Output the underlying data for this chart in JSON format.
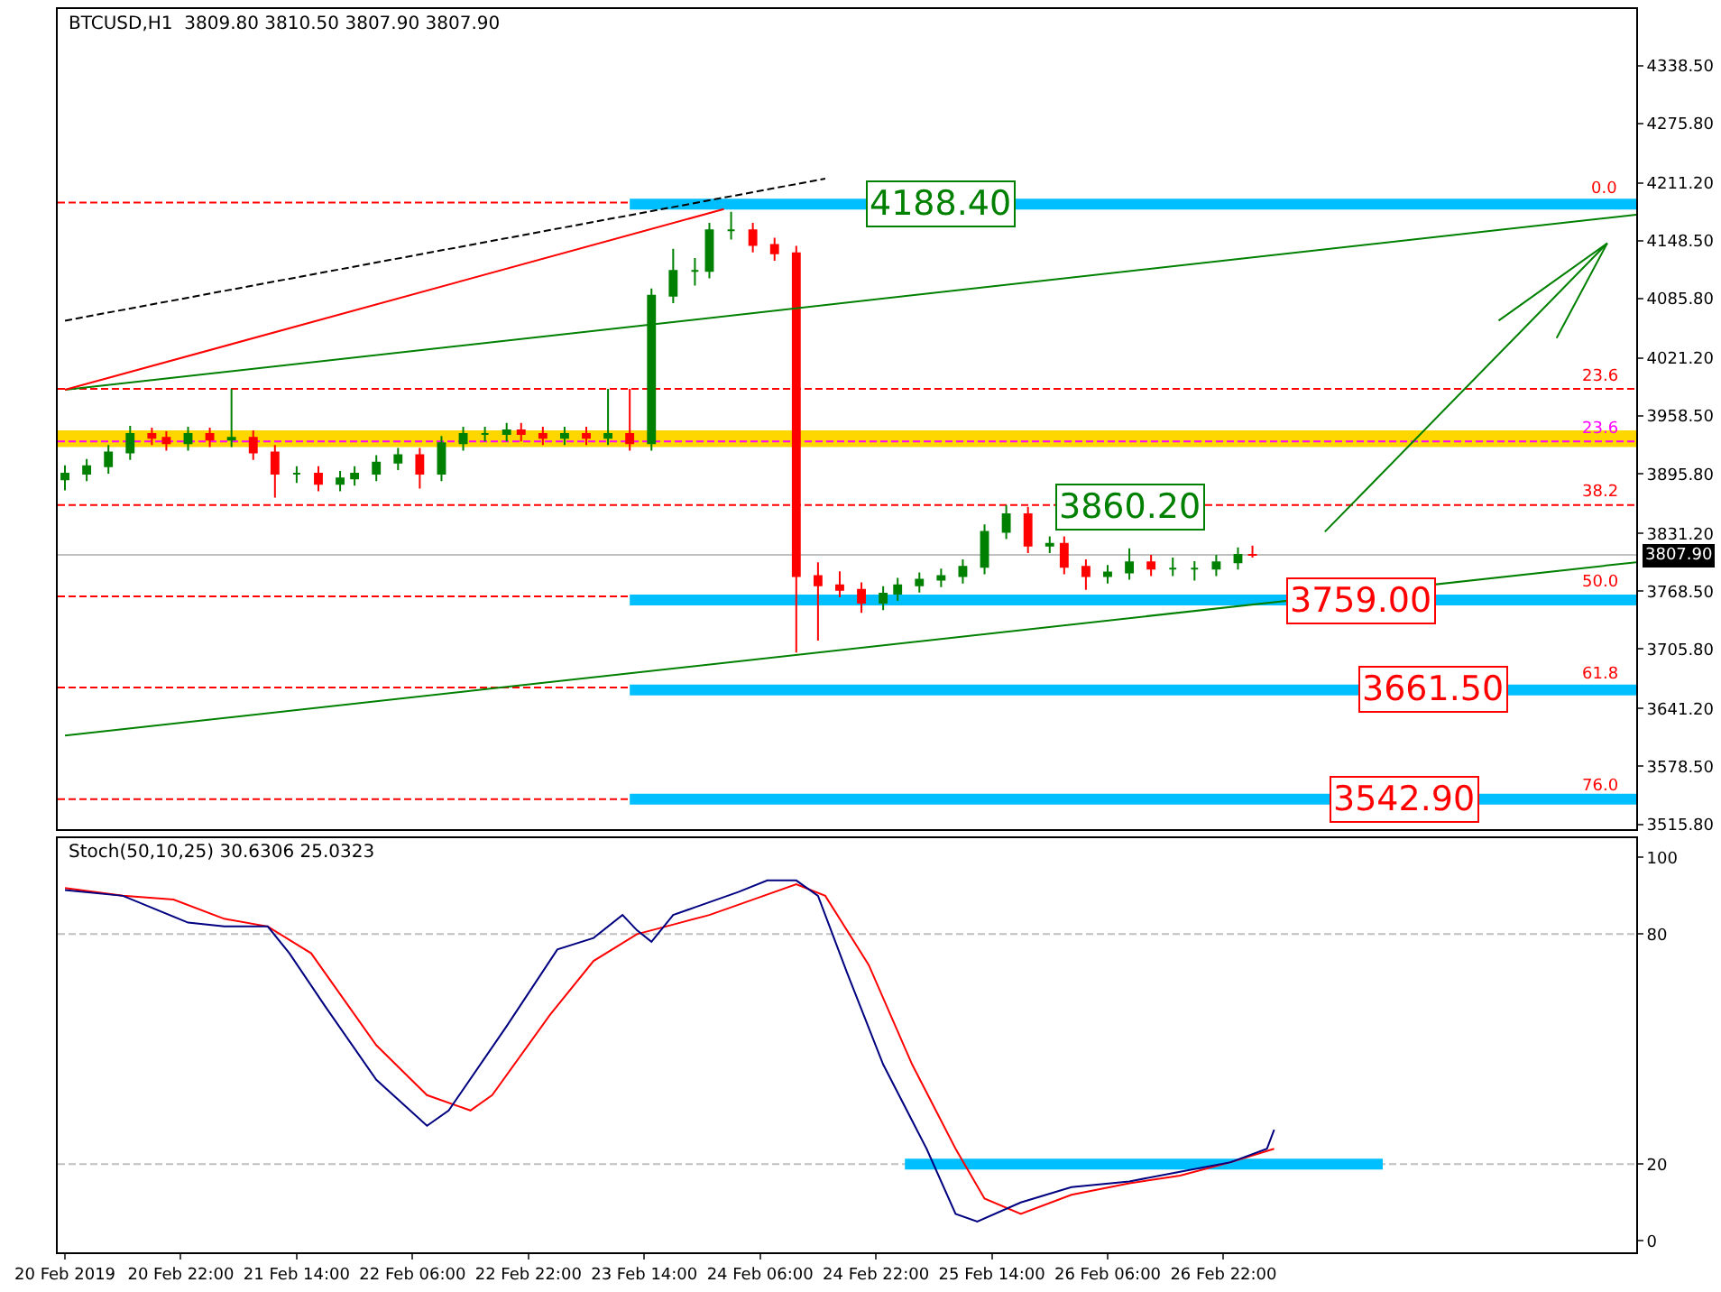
{
  "chart_data": [
    {
      "type": "candlestick",
      "title": "BTCUSD,H1  3809.80 3810.50 3807.90 3807.90",
      "x": [
        "2019-02-20T06:00",
        "2019-02-20T09:00",
        "2019-02-20T12:00",
        "2019-02-20T15:00",
        "2019-02-20T18:00",
        "2019-02-20T20:00",
        "2019-02-20T23:00",
        "2019-02-21T02:00",
        "2019-02-21T05:00",
        "2019-02-21T08:00",
        "2019-02-21T11:00",
        "2019-02-21T14:00",
        "2019-02-21T17:00",
        "2019-02-21T20:00",
        "2019-02-21T22:00",
        "2019-02-22T01:00",
        "2019-02-22T04:00",
        "2019-02-22T07:00",
        "2019-02-22T10:00",
        "2019-02-22T13:00",
        "2019-02-22T16:00",
        "2019-02-22T19:00",
        "2019-02-22T21:00",
        "2019-02-23T00:00",
        "2019-02-23T03:00",
        "2019-02-23T06:00",
        "2019-02-23T09:00",
        "2019-02-23T12:00",
        "2019-02-23T15:00",
        "2019-02-23T18:00",
        "2019-02-23T21:00",
        "2019-02-23T23:00",
        "2019-02-24T02:00",
        "2019-02-24T05:00",
        "2019-02-24T08:00",
        "2019-02-24T11:00",
        "2019-02-24T14:00",
        "2019-02-24T17:00",
        "2019-02-24T20:00",
        "2019-02-24T23:00",
        "2019-02-25T01:00",
        "2019-02-25T04:00",
        "2019-02-25T07:00",
        "2019-02-25T10:00",
        "2019-02-25T13:00",
        "2019-02-25T16:00",
        "2019-02-25T19:00",
        "2019-02-25T22:00",
        "2019-02-26T00:00",
        "2019-02-26T03:00",
        "2019-02-26T06:00",
        "2019-02-26T09:00",
        "2019-02-26T12:00",
        "2019-02-26T15:00",
        "2019-02-26T18:00",
        "2019-02-26T21:00",
        "2019-02-27T00:00",
        "2019-02-27T02:00"
      ],
      "ohlc": [
        [
          3890,
          3905,
          3878,
          3896
        ],
        [
          3896,
          3912,
          3888,
          3904
        ],
        [
          3904,
          3927,
          3896,
          3919
        ],
        [
          3919,
          3948,
          3911,
          3939
        ],
        [
          3939,
          3946,
          3927,
          3935
        ],
        [
          3935,
          3942,
          3921,
          3929
        ],
        [
          3929,
          3947,
          3921,
          3939
        ],
        [
          3939,
          3946,
          3925,
          3933
        ],
        [
          3933,
          3988,
          3925,
          3935
        ],
        [
          3935,
          3943,
          3911,
          3919
        ],
        [
          3919,
          3927,
          3870,
          3896
        ],
        [
          3896,
          3904,
          3886,
          3896
        ],
        [
          3896,
          3904,
          3877,
          3885
        ],
        [
          3885,
          3899,
          3877,
          3891
        ],
        [
          3891,
          3904,
          3883,
          3896
        ],
        [
          3896,
          3916,
          3888,
          3908
        ],
        [
          3908,
          3924,
          3900,
          3916
        ],
        [
          3916,
          3924,
          3880,
          3896
        ],
        [
          3896,
          3937,
          3888,
          3929
        ],
        [
          3929,
          3947,
          3921,
          3939
        ],
        [
          3939,
          3947,
          3931,
          3939
        ],
        [
          3939,
          3951,
          3931,
          3943
        ],
        [
          3943,
          3951,
          3931,
          3939
        ],
        [
          3939,
          3947,
          3927,
          3935
        ],
        [
          3935,
          3947,
          3927,
          3939
        ],
        [
          3939,
          3947,
          3927,
          3935
        ],
        [
          3935,
          3988,
          3927,
          3939
        ],
        [
          3939,
          3988,
          3921,
          3929
        ],
        [
          3929,
          4097,
          3921,
          4089
        ],
        [
          4089,
          4140,
          4081,
          4116
        ],
        [
          4116,
          4130,
          4100,
          4116
        ],
        [
          4116,
          4168,
          4108,
          4160
        ],
        [
          4160,
          4180,
          4150,
          4160
        ],
        [
          4160,
          4168,
          4136,
          4144
        ],
        [
          4144,
          4152,
          4127,
          4135
        ],
        [
          4135,
          4143,
          3702,
          3785
        ],
        [
          3785,
          3800,
          3715,
          3775
        ],
        [
          3775,
          3790,
          3762,
          3770
        ],
        [
          3770,
          3778,
          3745,
          3756
        ],
        [
          3756,
          3774,
          3748,
          3766
        ],
        [
          3766,
          3783,
          3758,
          3775
        ],
        [
          3775,
          3789,
          3767,
          3781
        ],
        [
          3781,
          3793,
          3773,
          3785
        ],
        [
          3785,
          3803,
          3777,
          3795
        ],
        [
          3795,
          3841,
          3787,
          3833
        ],
        [
          3833,
          3862,
          3825,
          3852
        ],
        [
          3852,
          3860,
          3810,
          3818
        ],
        [
          3818,
          3828,
          3810,
          3820
        ],
        [
          3820,
          3828,
          3787,
          3795
        ],
        [
          3795,
          3803,
          3770,
          3785
        ],
        [
          3785,
          3797,
          3777,
          3789
        ],
        [
          3789,
          3815,
          3781,
          3800
        ],
        [
          3800,
          3808,
          3785,
          3793
        ],
        [
          3793,
          3805,
          3785,
          3793
        ],
        [
          3793,
          3801,
          3780,
          3793
        ],
        [
          3793,
          3808,
          3785,
          3800
        ],
        [
          3800,
          3816,
          3792,
          3808
        ],
        [
          3808,
          3818,
          3805,
          3807.9
        ]
      ],
      "colors": [
        "#008000",
        "#008000",
        "#008000",
        "#008000",
        "#ff0000",
        "#ff0000",
        "#008000",
        "#ff0000",
        "#008000",
        "#ff0000",
        "#ff0000",
        "#008000",
        "#ff0000",
        "#008000",
        "#008000",
        "#008000",
        "#008000",
        "#ff0000",
        "#008000",
        "#008000",
        "#008000",
        "#008000",
        "#ff0000",
        "#ff0000",
        "#008000",
        "#ff0000",
        "#008000",
        "#ff0000",
        "#008000",
        "#008000",
        "#008000",
        "#008000",
        "#008000",
        "#ff0000",
        "#ff0000",
        "#ff0000",
        "#ff0000",
        "#ff0000",
        "#ff0000",
        "#008000",
        "#008000",
        "#008000",
        "#008000",
        "#008000",
        "#008000",
        "#008000",
        "#ff0000",
        "#008000",
        "#ff0000",
        "#ff0000",
        "#008000",
        "#008000",
        "#ff0000",
        "#008000",
        "#008000",
        "#008000",
        "#008000",
        "#ff0000"
      ],
      "series": [
        {
          "type": "line",
          "color": "#00bfff",
          "x": [
            "2019-02-23T12:00",
            "2019-03-01T07:00"
          ],
          "values": [
            4188.4,
            4188.4
          ]
        },
        {
          "type": "line",
          "color": "#00bfff",
          "x": [
            "2019-02-23T12:00",
            "2019-03-01T07:00"
          ],
          "values": [
            3759,
            3759
          ]
        },
        {
          "type": "line",
          "color": "#00bfff",
          "x": [
            "2019-02-23T12:00",
            "2019-03-01T07:00"
          ],
          "values": [
            3661.5,
            3661.5
          ]
        },
        {
          "type": "line",
          "color": "#00bfff",
          "x": [
            "2019-02-23T12:00",
            "2019-03-01T07:00"
          ],
          "values": [
            3542.9,
            3542.9
          ]
        },
        {
          "type": "line",
          "color": "#008000",
          "x": [
            "2019-02-20T06:00",
            "2019-03-01T07:00"
          ],
          "values": [
            3612,
            3800
          ]
        },
        {
          "type": "line",
          "color": "#008000",
          "x": [
            "2019-02-20T06:00",
            "2019-03-01T07:00"
          ],
          "values": [
            3987,
            4177
          ]
        },
        {
          "type": "line",
          "color": "#ff0000",
          "x": [
            "2019-02-20T06:00",
            "2019-02-24T01:00"
          ],
          "values": [
            3987,
            4183
          ]
        },
        {
          "type": "line",
          "color": "#000000",
          "line_style": "dashed",
          "x": [
            "2019-02-20T06:00",
            "2019-02-24T15:00"
          ],
          "values": [
            4062,
            4216
          ]
        },
        {
          "type": "line",
          "color": "#008000",
          "x": [
            "2019-02-27T12:00",
            "2019-03-01T03:00",
            "2019-02-28T12:00",
            null,
            "2019-03-01T03:00",
            "2019-02-28T20:00"
          ],
          "values": [
            3833,
            4146,
            4062,
            null,
            4146,
            4043
          ]
        }
      ],
      "ref_lines": [
        {
          "axis": "y",
          "value": 4190,
          "color": "#ff0000",
          "line_style": "dashed"
        },
        {
          "axis": "y",
          "value": 3988,
          "color": "#ff0000",
          "line_style": "dashed"
        },
        {
          "axis": "y",
          "value": 3931,
          "color": "#ff00ff",
          "line_style": "dashed"
        },
        {
          "axis": "y",
          "value": 3862,
          "color": "#ff0000",
          "line_style": "dashed"
        },
        {
          "axis": "y",
          "value": 3763,
          "color": "#ff0000",
          "line_style": "dashed"
        },
        {
          "axis": "y",
          "value": 3664,
          "color": "#ff0000",
          "line_style": "dashed"
        },
        {
          "axis": "y",
          "value": 3543,
          "color": "#ff0000",
          "line_style": "dashed"
        },
        {
          "axis": "y",
          "value": 3807.9,
          "label": "3807.90",
          "color": "#c0c0c0",
          "line_style": "solid"
        }
      ],
      "bands": [
        {
          "axis": "y",
          "from": 3925,
          "to": 3943,
          "color": "#ffd700"
        }
      ],
      "annotations": [
        {
          "text": "4188.40",
          "x": "2019-02-25T07:00",
          "y": 4188.4
        },
        {
          "text": "3860.20",
          "x": "2019-02-26T09:00",
          "y": 3860.2
        },
        {
          "text": "3759.00",
          "x": "2019-02-27T17:00",
          "y": 3759
        },
        {
          "text": "3661.50",
          "x": "2019-02-28T03:00",
          "y": 3661.5
        },
        {
          "text": "3542.90",
          "x": "2019-02-27T23:00",
          "y": 3542.9
        },
        {
          "text": "0.0",
          "x": "2019-03-01T05:00",
          "y": 4190
        },
        {
          "text": "23.6",
          "x": "2019-03-01T05:00",
          "y": 3988
        },
        {
          "text": "23.6",
          "x": "2019-03-01T05:00",
          "y": 3931
        },
        {
          "text": "38.2",
          "x": "2019-03-01T05:00",
          "y": 3862
        },
        {
          "text": "50.0",
          "x": "2019-03-01T05:00",
          "y": 3763
        },
        {
          "text": "61.8",
          "x": "2019-03-01T05:00",
          "y": 3664
        },
        {
          "text": "76.0",
          "x": "2019-03-01T05:00",
          "y": 3543
        }
      ],
      "xlim": [
        "2019-02-20T05:00",
        "2019-03-01T07:00"
      ],
      "ylim": [
        3510,
        4400
      ],
      "yticks": [
        {
          "value": 4338.5,
          "label": "4338.50"
        },
        {
          "value": 4275.8,
          "label": "4275.80"
        },
        {
          "value": 4211.2,
          "label": "4211.20"
        },
        {
          "value": 4148.5,
          "label": "4148.50"
        },
        {
          "value": 4085.8,
          "label": "4085.80"
        },
        {
          "value": 4021.2,
          "label": "4021.20"
        },
        {
          "value": 3958.5,
          "label": "3958.50"
        },
        {
          "value": 3895.8,
          "label": "3895.80"
        },
        {
          "value": 3831.2,
          "label": "3831.20"
        },
        {
          "value": 3768.5,
          "label": "3768.50"
        },
        {
          "value": 3705.8,
          "label": "3705.80"
        },
        {
          "value": 3641.2,
          "label": "3641.20"
        },
        {
          "value": 3578.5,
          "label": "3578.50"
        },
        {
          "value": 3515.8,
          "label": "3515.80"
        }
      ],
      "tick_labels": "y"
    },
    {
      "type": "line",
      "title": "Stoch(50,10,25) 30.6306 25.0323",
      "series": [
        {
          "type": "line",
          "color": "#00bfff",
          "x": [
            "2019-02-25T02:00",
            "2019-02-27T20:00"
          ],
          "values": [
            20,
            20
          ]
        },
        {
          "type": "line",
          "color": "#ff0000",
          "x": [
            "2019-02-20T06:00",
            "2019-02-20T14:00",
            "2019-02-20T21:00",
            "2019-02-21T04:00",
            "2019-02-21T10:00",
            "2019-02-21T16:00",
            "2019-02-22T01:00",
            "2019-02-22T08:00",
            "2019-02-22T14:00",
            "2019-02-22T17:00",
            "2019-02-23T01:00",
            "2019-02-23T07:00",
            "2019-02-23T13:00",
            "2019-02-23T19:00",
            "2019-02-23T23:00",
            "2019-02-24T05:00",
            "2019-02-24T11:00",
            "2019-02-24T15:00",
            "2019-02-24T21:00",
            "2019-02-25T03:00",
            "2019-02-25T09:00",
            "2019-02-25T13:00",
            "2019-02-25T18:00",
            "2019-02-26T01:00",
            "2019-02-26T09:00",
            "2019-02-26T16:00",
            "2019-02-26T23:00",
            "2019-02-27T05:00"
          ],
          "values": [
            92,
            90,
            89,
            84,
            82,
            75,
            51,
            38,
            34,
            38,
            59,
            73,
            80,
            83,
            85,
            89,
            93,
            90,
            72,
            46,
            24,
            11,
            7,
            12,
            15,
            17,
            20.5,
            24
          ]
        },
        {
          "type": "line",
          "color": "#000080",
          "x": [
            "2019-02-20T06:00",
            "2019-02-20T14:00",
            "2019-02-20T23:00",
            "2019-02-21T04:00",
            "2019-02-21T10:00",
            "2019-02-21T13:00",
            "2019-02-21T18:00",
            "2019-02-22T01:00",
            "2019-02-22T08:00",
            "2019-02-22T11:00",
            "2019-02-22T19:00",
            "2019-02-23T02:00",
            "2019-02-23T07:00",
            "2019-02-23T11:00",
            "2019-02-23T13:00",
            "2019-02-23T15:00",
            "2019-02-23T18:00",
            "2019-02-23T21:00",
            "2019-02-24T03:00",
            "2019-02-24T07:00",
            "2019-02-24T11:00",
            "2019-02-24T14:00",
            "2019-02-24T18:00",
            "2019-02-24T23:00",
            "2019-02-25T05:00",
            "2019-02-25T09:00",
            "2019-02-25T12:00",
            "2019-02-25T18:00",
            "2019-02-26T01:00",
            "2019-02-26T09:00",
            "2019-02-26T16:00",
            "2019-02-26T23:00",
            "2019-02-27T04:00",
            "2019-02-27T05:00"
          ],
          "values": [
            91.5,
            90,
            83,
            82,
            82,
            75,
            61,
            42,
            30,
            34,
            56,
            76,
            79,
            85,
            81,
            78,
            85,
            87,
            91,
            94,
            94,
            90,
            70,
            46,
            24,
            7,
            5,
            10,
            14,
            15.5,
            18,
            20.5,
            24,
            29
          ]
        }
      ],
      "ref_lines": [
        {
          "axis": "y",
          "value": 80,
          "color": "#c0c0c0",
          "line_style": "dashed"
        },
        {
          "axis": "y",
          "value": 20,
          "color": "#c0c0c0",
          "line_style": "dashed"
        }
      ],
      "xlim": [
        "2019-02-20T05:00",
        "2019-03-01T07:00"
      ],
      "xticks": [
        {
          "value": "2019-02-20T06:00",
          "label": "20 Feb 2019"
        },
        {
          "value": "2019-02-20T22:00",
          "label": "20 Feb 22:00"
        },
        {
          "value": "2019-02-21T14:00",
          "label": "21 Feb 14:00"
        },
        {
          "value": "2019-02-22T06:00",
          "label": "22 Feb 06:00"
        },
        {
          "value": "2019-02-22T22:00",
          "label": "22 Feb 22:00"
        },
        {
          "value": "2019-02-23T14:00",
          "label": "23 Feb 14:00"
        },
        {
          "value": "2019-02-24T06:00",
          "label": "24 Feb 06:00"
        },
        {
          "value": "2019-02-24T22:00",
          "label": "24 Feb 22:00"
        },
        {
          "value": "2019-02-25T14:00",
          "label": "25 Feb 14:00"
        },
        {
          "value": "2019-02-26T06:00",
          "label": "26 Feb 06:00"
        },
        {
          "value": "2019-02-26T22:00",
          "label": "26 Feb 22:00"
        }
      ],
      "ylim": [
        -3,
        105
      ],
      "yticks": [
        0,
        20,
        80,
        100
      ]
    }
  ]
}
